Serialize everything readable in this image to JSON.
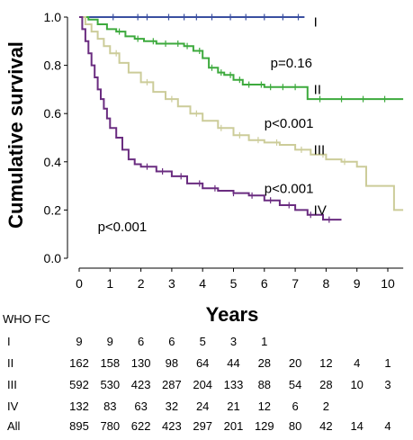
{
  "chart_data": {
    "type": "line",
    "ylabel": "Cumulative survival",
    "xlabel": "Years",
    "xlim": [
      0,
      10.5
    ],
    "ylim": [
      0,
      1
    ],
    "x_ticks": [
      0,
      1,
      2,
      3,
      4,
      5,
      6,
      7,
      8,
      9,
      10
    ],
    "y_ticks": [
      "0.0",
      "0.2",
      "0.4",
      "0.6",
      "0.8",
      "1.0"
    ],
    "y_tick_values": [
      0,
      0.2,
      0.4,
      0.6,
      0.8,
      1.0
    ],
    "grid": false,
    "series": [
      {
        "name": "I",
        "color": "#3a4fa0",
        "points": [
          [
            0,
            1.0
          ],
          [
            7.3,
            1.0
          ]
        ],
        "censor_x": [
          1.1,
          1.9,
          2.2,
          2.9,
          3.4,
          3.8,
          4.3,
          4.9,
          5.4,
          6.0,
          6.6,
          7.1
        ]
      },
      {
        "name": "II",
        "color": "#3daa3d",
        "points": [
          [
            0,
            1.0
          ],
          [
            0.3,
            0.99
          ],
          [
            0.6,
            0.97
          ],
          [
            0.9,
            0.95
          ],
          [
            1.2,
            0.94
          ],
          [
            1.5,
            0.92
          ],
          [
            1.8,
            0.91
          ],
          [
            2.1,
            0.9
          ],
          [
            2.5,
            0.89
          ],
          [
            3.0,
            0.89
          ],
          [
            3.4,
            0.88
          ],
          [
            3.7,
            0.86
          ],
          [
            4.0,
            0.83
          ],
          [
            4.2,
            0.79
          ],
          [
            4.5,
            0.77
          ],
          [
            4.7,
            0.76
          ],
          [
            5.0,
            0.74
          ],
          [
            5.3,
            0.72
          ],
          [
            5.6,
            0.72
          ],
          [
            6.0,
            0.71
          ],
          [
            6.5,
            0.71
          ],
          [
            7.4,
            0.71
          ],
          [
            7.4,
            0.66
          ],
          [
            10.5,
            0.66
          ]
        ],
        "censor_x": [
          1.3,
          1.9,
          2.4,
          2.8,
          3.2,
          3.5,
          3.9,
          4.3,
          4.6,
          4.9,
          5.2,
          5.5,
          5.9,
          6.2,
          6.6,
          7.0,
          7.8,
          8.5,
          9.2,
          9.9
        ]
      },
      {
        "name": "III",
        "color": "#cccc99",
        "points": [
          [
            0,
            1.0
          ],
          [
            0.2,
            0.97
          ],
          [
            0.4,
            0.94
          ],
          [
            0.6,
            0.91
          ],
          [
            0.8,
            0.88
          ],
          [
            1.0,
            0.85
          ],
          [
            1.3,
            0.81
          ],
          [
            1.6,
            0.77
          ],
          [
            2.0,
            0.73
          ],
          [
            2.4,
            0.69
          ],
          [
            2.8,
            0.66
          ],
          [
            3.2,
            0.63
          ],
          [
            3.6,
            0.6
          ],
          [
            4.0,
            0.57
          ],
          [
            4.5,
            0.54
          ],
          [
            5.0,
            0.51
          ],
          [
            5.5,
            0.49
          ],
          [
            6.0,
            0.48
          ],
          [
            6.5,
            0.47
          ],
          [
            7.0,
            0.45
          ],
          [
            7.5,
            0.43
          ],
          [
            8.0,
            0.41
          ],
          [
            8.5,
            0.4
          ],
          [
            9.0,
            0.38
          ],
          [
            9.3,
            0.35
          ],
          [
            9.3,
            0.3
          ],
          [
            10.2,
            0.3
          ],
          [
            10.2,
            0.2
          ],
          [
            10.5,
            0.2
          ]
        ],
        "censor_x": [
          1.2,
          2.2,
          3.0,
          3.8,
          4.6,
          5.2,
          5.8,
          6.4,
          7.2,
          7.9,
          8.6
        ]
      },
      {
        "name": "IV",
        "color": "#6a2c80",
        "points": [
          [
            0,
            1.0
          ],
          [
            0.1,
            0.95
          ],
          [
            0.2,
            0.9
          ],
          [
            0.3,
            0.85
          ],
          [
            0.4,
            0.8
          ],
          [
            0.5,
            0.75
          ],
          [
            0.6,
            0.7
          ],
          [
            0.7,
            0.66
          ],
          [
            0.8,
            0.62
          ],
          [
            0.9,
            0.58
          ],
          [
            1.0,
            0.54
          ],
          [
            1.2,
            0.5
          ],
          [
            1.4,
            0.45
          ],
          [
            1.6,
            0.41
          ],
          [
            1.8,
            0.39
          ],
          [
            2.0,
            0.38
          ],
          [
            2.5,
            0.36
          ],
          [
            3.0,
            0.34
          ],
          [
            3.5,
            0.31
          ],
          [
            4.0,
            0.29
          ],
          [
            4.5,
            0.28
          ],
          [
            5.0,
            0.27
          ],
          [
            5.5,
            0.26
          ],
          [
            6.0,
            0.24
          ],
          [
            6.5,
            0.22
          ],
          [
            7.0,
            0.2
          ],
          [
            7.4,
            0.18
          ],
          [
            7.9,
            0.16
          ],
          [
            8.5,
            0.16
          ]
        ],
        "censor_x": [
          2.2,
          2.7,
          3.3,
          3.9,
          4.4,
          5.0,
          5.6,
          6.2,
          6.8,
          7.5,
          8.1
        ]
      }
    ],
    "group_labels": [
      {
        "text": "I",
        "x": 7.6,
        "y": 0.98
      },
      {
        "text": "II",
        "x": 7.6,
        "y": 0.7
      },
      {
        "text": "III",
        "x": 7.6,
        "y": 0.45
      },
      {
        "text": "IV",
        "x": 7.6,
        "y": 0.2
      }
    ],
    "annotations": [
      {
        "text": "p=0.16",
        "x": 6.2,
        "y": 0.81
      },
      {
        "text": "p<0.001",
        "x": 6.0,
        "y": 0.56
      },
      {
        "text": "p<0.001",
        "x": 6.0,
        "y": 0.29
      },
      {
        "text": "p<0.001",
        "x": 0.6,
        "y": 0.13
      }
    ]
  },
  "risk_table": {
    "title": "WHO FC",
    "rows": [
      {
        "label": "I",
        "values": [
          "9",
          "9",
          "6",
          "6",
          "5",
          "3",
          "1",
          "",
          "",
          "",
          ""
        ]
      },
      {
        "label": "II",
        "values": [
          "162",
          "158",
          "130",
          "98",
          "64",
          "44",
          "28",
          "20",
          "12",
          "4",
          "1"
        ]
      },
      {
        "label": "III",
        "values": [
          "592",
          "530",
          "423",
          "287",
          "204",
          "133",
          "88",
          "54",
          "28",
          "10",
          "3"
        ]
      },
      {
        "label": "IV",
        "values": [
          "132",
          "83",
          "63",
          "32",
          "24",
          "21",
          "12",
          "6",
          "2",
          "",
          ""
        ]
      },
      {
        "label": "All",
        "values": [
          "895",
          "780",
          "622",
          "423",
          "297",
          "201",
          "129",
          "80",
          "42",
          "14",
          "4"
        ]
      }
    ]
  }
}
